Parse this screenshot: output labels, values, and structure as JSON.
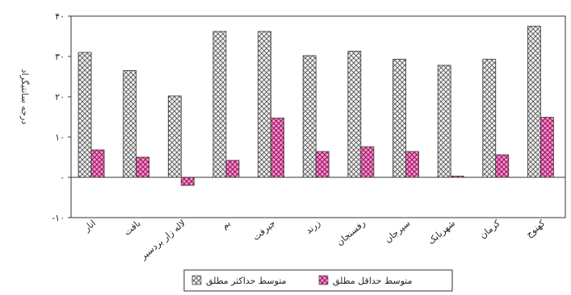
{
  "chart_data": {
    "type": "bar",
    "ylabel": "درجه سانتیگراد",
    "ylim": [
      -10,
      40
    ],
    "y_ticks": [
      -10,
      0,
      10,
      20,
      30,
      40
    ],
    "y_tick_labels": [
      "-۱۰",
      "۰",
      "۱۰",
      "۲۰",
      "۳۰",
      "۴۰"
    ],
    "grid": false,
    "legend_position": "bottom",
    "categories": [
      "انار",
      "بافت",
      "لاله زار بردسیر",
      "بم",
      "جیرفت",
      "زرند",
      "رفسنجان",
      "سیرجان",
      "شهربابک",
      "کرمان",
      "کهنوج"
    ],
    "series": [
      {
        "name": "متوسط حداکثر مطلق",
        "pattern": "crosshatch",
        "color": "#d9d9d9",
        "values": [
          31,
          26.5,
          20.2,
          36.2,
          36.2,
          30.2,
          31.3,
          29.3,
          27.8,
          29.3,
          37.5
        ]
      },
      {
        "name": "متوسط حداقل مطلق",
        "pattern": "crosshatch",
        "color": "#e0569f",
        "values": [
          6.8,
          5.0,
          -2.0,
          4.2,
          14.7,
          6.4,
          7.6,
          6.4,
          0.3,
          5.6,
          14.9
        ]
      }
    ]
  }
}
